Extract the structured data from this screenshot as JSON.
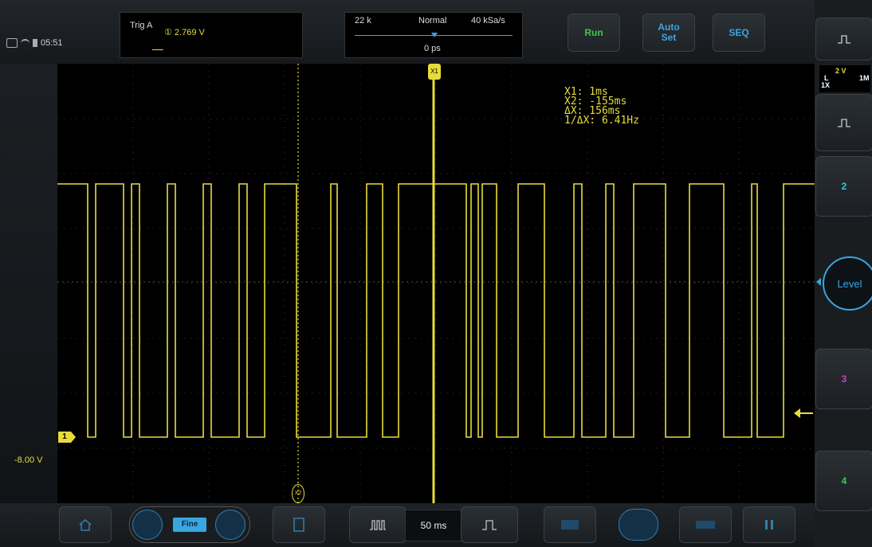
{
  "status_bar": {
    "time": "05:51"
  },
  "trigger": {
    "label": "Trig  A",
    "value": "① 2.769  V"
  },
  "timebase": {
    "memory": "22 k",
    "mode": "Normal",
    "sample_rate": "40 kSa/s",
    "position": "0 ps"
  },
  "toolbar": {
    "run_label": "Run",
    "autoset_label": "Auto\nSet",
    "seq_label": "SEQ"
  },
  "right_panel": {
    "ch1_scale": "2 V",
    "ch1_coupling": "L",
    "ch1_probe": "1X",
    "ch1_impedance": "1M",
    "ch2_label": "2",
    "level_label": "Level",
    "ch3_label": "3",
    "ch4_label": "4",
    "colors": {
      "ch1": "#e8dc3c",
      "ch2": "#36c6e6",
      "ch3": "#c83ec8",
      "ch4": "#3ec94a"
    }
  },
  "waveform": {
    "channel_marker": "1",
    "offset_label": "-8.00 V",
    "cursor_x1_label": "X1",
    "cursor_x2_label": "X2"
  },
  "cursor_readout": {
    "x1": "X1:  1ms",
    "x2": "X2:  -155ms",
    "dx": "ΔX:  156ms",
    "inv_dx": "1/ΔX:  6.41Hz"
  },
  "bottom_bar": {
    "fine_label": "Fine",
    "timebase_value": "50 ms"
  }
}
